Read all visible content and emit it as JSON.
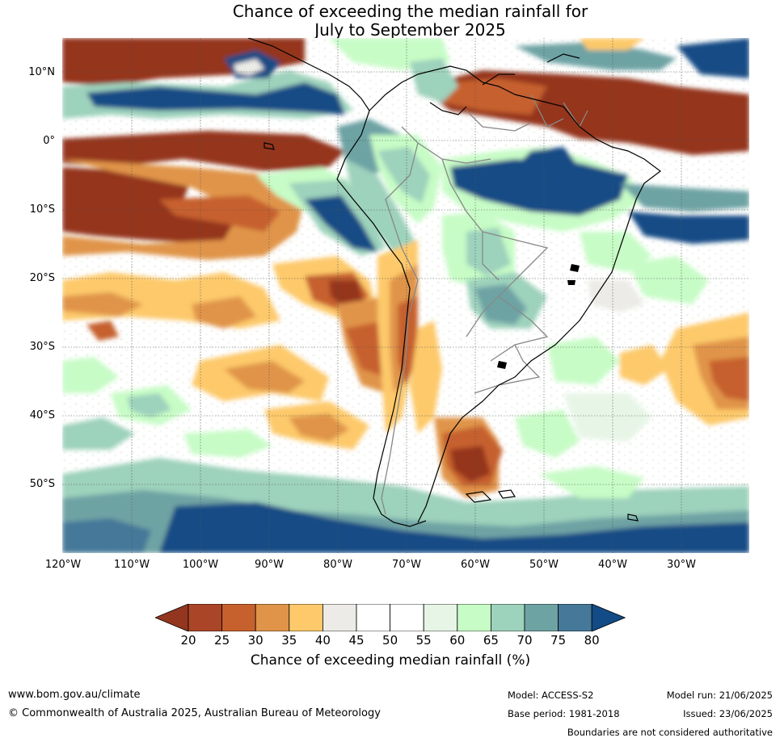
{
  "title": {
    "line1": "Chance of exceeding the median rainfall for",
    "line2": "July to September 2025"
  },
  "map": {
    "lat_labels": [
      "10°N",
      "0°",
      "10°S",
      "20°S",
      "30°S",
      "40°S",
      "50°S"
    ],
    "lon_labels": [
      "120°W",
      "110°W",
      "100°W",
      "90°W",
      "80°W",
      "70°W",
      "60°W",
      "50°W",
      "40°W",
      "30°W"
    ],
    "colors": {
      "dry_deep": "#94361f",
      "dry_mid": "#c6612d",
      "dry_light": "#e0944a",
      "dry_pale": "#fdc96a",
      "neutral": "#ecebe7",
      "wet_pale": "#e7f5e6",
      "wet_light": "#c7fcc6",
      "wet_mid": "#9dd2bc",
      "wet_teal": "#6ea3a4",
      "wet_blue": "#457899",
      "wet_deep": "#124b85"
    }
  },
  "legend": {
    "ticks": [
      "20",
      "25",
      "30",
      "35",
      "40",
      "45",
      "50",
      "55",
      "60",
      "65",
      "70",
      "75",
      "80"
    ],
    "colors": [
      "#94361f",
      "#aa4627",
      "#c6612d",
      "#e0944a",
      "#fdc96a",
      "#ecebe7",
      "#ffffff",
      "#ffffff",
      "#e7f5e6",
      "#c7fcc6",
      "#9dd2bc",
      "#6ea3a4",
      "#457899",
      "#124b85"
    ],
    "label": "Chance of exceeding median rainfall (%)"
  },
  "footer": {
    "website": "www.bom.gov.au/climate",
    "copyright": "© Commonwealth of Australia 2025, Australian Bureau of Meteorology",
    "model": "Model: ACCESS-S2",
    "base_period": "Base period: 1981-2018",
    "model_run": "Model run: 21/06/2025",
    "issued": "Issued: 23/06/2025",
    "disclaimer": "Boundaries are not considered authoritative"
  }
}
